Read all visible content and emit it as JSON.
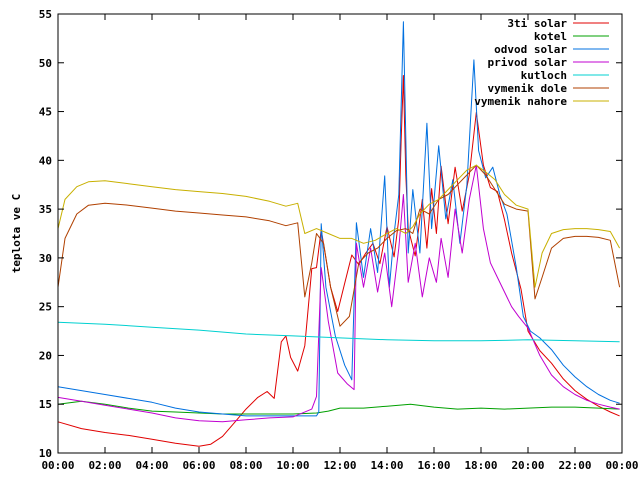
{
  "chart_data": {
    "type": "line",
    "title": "",
    "xlabel": "",
    "ylabel": "teplota ve C",
    "xlim": [
      0,
      24
    ],
    "ylim": [
      10,
      55
    ],
    "x_ticks": [
      "00:00",
      "02:00",
      "04:00",
      "06:00",
      "08:00",
      "10:00",
      "12:00",
      "14:00",
      "16:00",
      "18:00",
      "20:00",
      "22:00",
      "00:00"
    ],
    "y_ticks": [
      10,
      15,
      20,
      25,
      30,
      35,
      40,
      45,
      50,
      55
    ],
    "grid": false,
    "legend_position": "top-right",
    "series": [
      {
        "name": "3ti solar",
        "color": "#e00000",
        "points": [
          [
            0,
            13.2
          ],
          [
            1,
            12.5
          ],
          [
            2,
            12.1
          ],
          [
            3,
            11.8
          ],
          [
            4,
            11.4
          ],
          [
            5,
            11.0
          ],
          [
            6,
            10.7
          ],
          [
            6.5,
            10.9
          ],
          [
            7,
            11.7
          ],
          [
            7.5,
            13.1
          ],
          [
            8,
            14.5
          ],
          [
            8.5,
            15.7
          ],
          [
            8.9,
            16.3
          ],
          [
            9.2,
            15.6
          ],
          [
            9.5,
            21.4
          ],
          [
            9.7,
            22.0
          ],
          [
            9.9,
            19.8
          ],
          [
            10.2,
            18.4
          ],
          [
            10.5,
            21.0
          ],
          [
            10.8,
            28.9
          ],
          [
            11.0,
            29.0
          ],
          [
            11.2,
            32.9
          ],
          [
            11.6,
            27.0
          ],
          [
            11.9,
            24.5
          ],
          [
            12.2,
            27.4
          ],
          [
            12.5,
            30.3
          ],
          [
            12.8,
            29.3
          ],
          [
            13.1,
            30.5
          ],
          [
            13.4,
            31.5
          ],
          [
            13.7,
            29.4
          ],
          [
            14.0,
            33.2
          ],
          [
            14.3,
            30.1
          ],
          [
            14.5,
            34.0
          ],
          [
            14.6,
            41.9
          ],
          [
            14.7,
            48.7
          ],
          [
            14.8,
            38.5
          ],
          [
            14.9,
            33.0
          ],
          [
            15.2,
            30.2
          ],
          [
            15.5,
            36.0
          ],
          [
            15.7,
            31.0
          ],
          [
            15.9,
            37.1
          ],
          [
            16.1,
            32.5
          ],
          [
            16.3,
            39.4
          ],
          [
            16.6,
            33.5
          ],
          [
            16.9,
            39.3
          ],
          [
            17.2,
            34.8
          ],
          [
            17.5,
            38.5
          ],
          [
            17.8,
            44.9
          ],
          [
            18.1,
            39.5
          ],
          [
            18.4,
            37.2
          ],
          [
            18.7,
            36.8
          ],
          [
            19.0,
            33.9
          ],
          [
            19.3,
            30.5
          ],
          [
            19.7,
            26.8
          ],
          [
            20.0,
            22.5
          ],
          [
            20.5,
            20.5
          ],
          [
            21.0,
            19.2
          ],
          [
            21.5,
            17.6
          ],
          [
            22.0,
            16.4
          ],
          [
            22.5,
            15.5
          ],
          [
            23.0,
            14.8
          ],
          [
            23.5,
            14.2
          ],
          [
            23.9,
            13.8
          ]
        ]
      },
      {
        "name": "kotel",
        "color": "#00a000",
        "points": [
          [
            0,
            15.0
          ],
          [
            1,
            15.3
          ],
          [
            2,
            15.0
          ],
          [
            3,
            14.6
          ],
          [
            4,
            14.3
          ],
          [
            5,
            14.2
          ],
          [
            6,
            14.1
          ],
          [
            7,
            14.0
          ],
          [
            8,
            14.0
          ],
          [
            9,
            14.0
          ],
          [
            10,
            14.0
          ],
          [
            11,
            14.1
          ],
          [
            11.5,
            14.3
          ],
          [
            12,
            14.6
          ],
          [
            13,
            14.6
          ],
          [
            14,
            14.8
          ],
          [
            15,
            15.0
          ],
          [
            16,
            14.7
          ],
          [
            17,
            14.5
          ],
          [
            18,
            14.6
          ],
          [
            19,
            14.5
          ],
          [
            20,
            14.6
          ],
          [
            21,
            14.7
          ],
          [
            22,
            14.7
          ],
          [
            23,
            14.6
          ],
          [
            23.9,
            14.5
          ]
        ]
      },
      {
        "name": "odvod solar",
        "color": "#0070e0",
        "points": [
          [
            0,
            16.8
          ],
          [
            1,
            16.4
          ],
          [
            2,
            16.0
          ],
          [
            3,
            15.6
          ],
          [
            4,
            15.2
          ],
          [
            5,
            14.6
          ],
          [
            6,
            14.2
          ],
          [
            7,
            14.0
          ],
          [
            8,
            13.8
          ],
          [
            9,
            13.8
          ],
          [
            10,
            13.8
          ],
          [
            11,
            13.8
          ],
          [
            11.1,
            14.2
          ],
          [
            11.2,
            33.5
          ],
          [
            11.4,
            27.0
          ],
          [
            11.8,
            22.0
          ],
          [
            12.2,
            19.0
          ],
          [
            12.5,
            17.5
          ],
          [
            12.7,
            33.6
          ],
          [
            13.0,
            28.0
          ],
          [
            13.3,
            33.0
          ],
          [
            13.6,
            28.5
          ],
          [
            13.9,
            38.4
          ],
          [
            14.1,
            27.0
          ],
          [
            14.3,
            32.5
          ],
          [
            14.5,
            36.5
          ],
          [
            14.7,
            54.2
          ],
          [
            14.9,
            30.5
          ],
          [
            15.1,
            37.0
          ],
          [
            15.4,
            30.5
          ],
          [
            15.7,
            43.8
          ],
          [
            15.9,
            33.0
          ],
          [
            16.2,
            41.5
          ],
          [
            16.5,
            34.0
          ],
          [
            16.8,
            38.0
          ],
          [
            17.1,
            31.5
          ],
          [
            17.4,
            37.5
          ],
          [
            17.7,
            50.3
          ],
          [
            17.9,
            41.0
          ],
          [
            18.2,
            38.2
          ],
          [
            18.5,
            39.3
          ],
          [
            18.8,
            36.5
          ],
          [
            19.1,
            34.5
          ],
          [
            19.5,
            29.0
          ],
          [
            19.8,
            24.0
          ],
          [
            20.1,
            22.5
          ],
          [
            20.5,
            21.8
          ],
          [
            21.0,
            20.6
          ],
          [
            21.5,
            19.0
          ],
          [
            22.0,
            17.8
          ],
          [
            22.5,
            16.8
          ],
          [
            23.0,
            16.0
          ],
          [
            23.5,
            15.4
          ],
          [
            23.9,
            15.1
          ]
        ]
      },
      {
        "name": "privod solar",
        "color": "#c000d0",
        "points": [
          [
            0,
            15.7
          ],
          [
            1,
            15.3
          ],
          [
            2,
            14.9
          ],
          [
            3,
            14.5
          ],
          [
            4,
            14.1
          ],
          [
            5,
            13.6
          ],
          [
            6,
            13.3
          ],
          [
            7,
            13.2
          ],
          [
            8,
            13.4
          ],
          [
            9,
            13.6
          ],
          [
            10,
            13.7
          ],
          [
            10.8,
            14.5
          ],
          [
            11.0,
            15.8
          ],
          [
            11.2,
            29.0
          ],
          [
            11.5,
            23.5
          ],
          [
            11.9,
            18.2
          ],
          [
            12.3,
            17.1
          ],
          [
            12.6,
            16.5
          ],
          [
            12.7,
            31.5
          ],
          [
            13.0,
            27.0
          ],
          [
            13.3,
            31.0
          ],
          [
            13.6,
            26.5
          ],
          [
            13.9,
            30.5
          ],
          [
            14.2,
            25.0
          ],
          [
            14.5,
            31.0
          ],
          [
            14.7,
            36.5
          ],
          [
            14.9,
            27.5
          ],
          [
            15.2,
            31.5
          ],
          [
            15.5,
            26.0
          ],
          [
            15.8,
            30.0
          ],
          [
            16.1,
            27.5
          ],
          [
            16.3,
            32.0
          ],
          [
            16.6,
            28.0
          ],
          [
            16.9,
            35.0
          ],
          [
            17.2,
            30.5
          ],
          [
            17.5,
            36.0
          ],
          [
            17.8,
            39.5
          ],
          [
            18.1,
            33.0
          ],
          [
            18.4,
            29.5
          ],
          [
            18.7,
            28.0
          ],
          [
            19.0,
            26.5
          ],
          [
            19.3,
            25.0
          ],
          [
            19.6,
            24.0
          ],
          [
            20.0,
            22.8
          ],
          [
            20.5,
            20.0
          ],
          [
            21.0,
            18.0
          ],
          [
            21.5,
            16.8
          ],
          [
            22.0,
            16.0
          ],
          [
            22.5,
            15.4
          ],
          [
            23.0,
            15.0
          ],
          [
            23.5,
            14.7
          ],
          [
            23.9,
            14.5
          ]
        ]
      },
      {
        "name": "kutloch",
        "color": "#00d0d0",
        "points": [
          [
            0,
            23.4
          ],
          [
            2,
            23.2
          ],
          [
            4,
            22.9
          ],
          [
            6,
            22.6
          ],
          [
            8,
            22.2
          ],
          [
            10,
            22.0
          ],
          [
            12,
            21.8
          ],
          [
            14,
            21.6
          ],
          [
            16,
            21.5
          ],
          [
            18,
            21.5
          ],
          [
            20,
            21.6
          ],
          [
            22,
            21.5
          ],
          [
            23.9,
            21.4
          ]
        ]
      },
      {
        "name": "vymenik dole",
        "color": "#b04000",
        "points": [
          [
            0,
            27.0
          ],
          [
            0.3,
            32.0
          ],
          [
            0.8,
            34.5
          ],
          [
            1.3,
            35.4
          ],
          [
            2,
            35.6
          ],
          [
            3,
            35.4
          ],
          [
            4,
            35.1
          ],
          [
            5,
            34.8
          ],
          [
            6,
            34.6
          ],
          [
            7,
            34.4
          ],
          [
            8,
            34.2
          ],
          [
            9,
            33.8
          ],
          [
            9.7,
            33.3
          ],
          [
            10.2,
            33.6
          ],
          [
            10.5,
            26.0
          ],
          [
            10.8,
            29.5
          ],
          [
            11.0,
            32.5
          ],
          [
            11.3,
            31.5
          ],
          [
            11.6,
            27.0
          ],
          [
            12.0,
            23.0
          ],
          [
            12.4,
            24.0
          ],
          [
            12.8,
            29.5
          ],
          [
            13.2,
            30.5
          ],
          [
            13.6,
            31.0
          ],
          [
            14.0,
            32.0
          ],
          [
            14.4,
            32.8
          ],
          [
            14.8,
            33.0
          ],
          [
            15.1,
            32.5
          ],
          [
            15.4,
            35.0
          ],
          [
            15.8,
            34.5
          ],
          [
            16.2,
            36.0
          ],
          [
            16.6,
            36.5
          ],
          [
            17.0,
            37.5
          ],
          [
            17.4,
            38.5
          ],
          [
            17.8,
            39.5
          ],
          [
            18.2,
            38.5
          ],
          [
            18.6,
            37.0
          ],
          [
            19.0,
            35.5
          ],
          [
            19.5,
            35.0
          ],
          [
            20.0,
            34.8
          ],
          [
            20.3,
            25.8
          ],
          [
            20.6,
            28.0
          ],
          [
            21.0,
            31.0
          ],
          [
            21.5,
            32.0
          ],
          [
            22.0,
            32.2
          ],
          [
            22.5,
            32.2
          ],
          [
            23.0,
            32.1
          ],
          [
            23.5,
            31.8
          ],
          [
            23.9,
            27.0
          ]
        ]
      },
      {
        "name": "vymenik nahore",
        "color": "#c8b000",
        "points": [
          [
            0,
            33.0
          ],
          [
            0.3,
            36.0
          ],
          [
            0.8,
            37.3
          ],
          [
            1.3,
            37.8
          ],
          [
            2,
            37.9
          ],
          [
            3,
            37.6
          ],
          [
            4,
            37.3
          ],
          [
            5,
            37.0
          ],
          [
            6,
            36.8
          ],
          [
            7,
            36.6
          ],
          [
            8,
            36.3
          ],
          [
            9,
            35.8
          ],
          [
            9.7,
            35.3
          ],
          [
            10.2,
            35.6
          ],
          [
            10.5,
            32.5
          ],
          [
            11.0,
            33.0
          ],
          [
            11.5,
            32.5
          ],
          [
            12.0,
            32.0
          ],
          [
            12.5,
            32.0
          ],
          [
            13.0,
            31.5
          ],
          [
            13.5,
            31.8
          ],
          [
            14.0,
            32.5
          ],
          [
            14.4,
            33.0
          ],
          [
            14.8,
            32.5
          ],
          [
            15.1,
            33.2
          ],
          [
            15.4,
            34.5
          ],
          [
            15.8,
            35.5
          ],
          [
            16.2,
            36.0
          ],
          [
            16.6,
            37.0
          ],
          [
            17.0,
            38.0
          ],
          [
            17.4,
            39.0
          ],
          [
            17.8,
            39.5
          ],
          [
            18.2,
            38.8
          ],
          [
            18.6,
            38.0
          ],
          [
            19.0,
            36.5
          ],
          [
            19.5,
            35.4
          ],
          [
            20.0,
            35.0
          ],
          [
            20.3,
            27.0
          ],
          [
            20.6,
            30.5
          ],
          [
            21.0,
            32.5
          ],
          [
            21.5,
            32.9
          ],
          [
            22.0,
            33.0
          ],
          [
            22.5,
            33.0
          ],
          [
            23.0,
            32.9
          ],
          [
            23.5,
            32.7
          ],
          [
            23.9,
            31.0
          ]
        ]
      }
    ]
  }
}
